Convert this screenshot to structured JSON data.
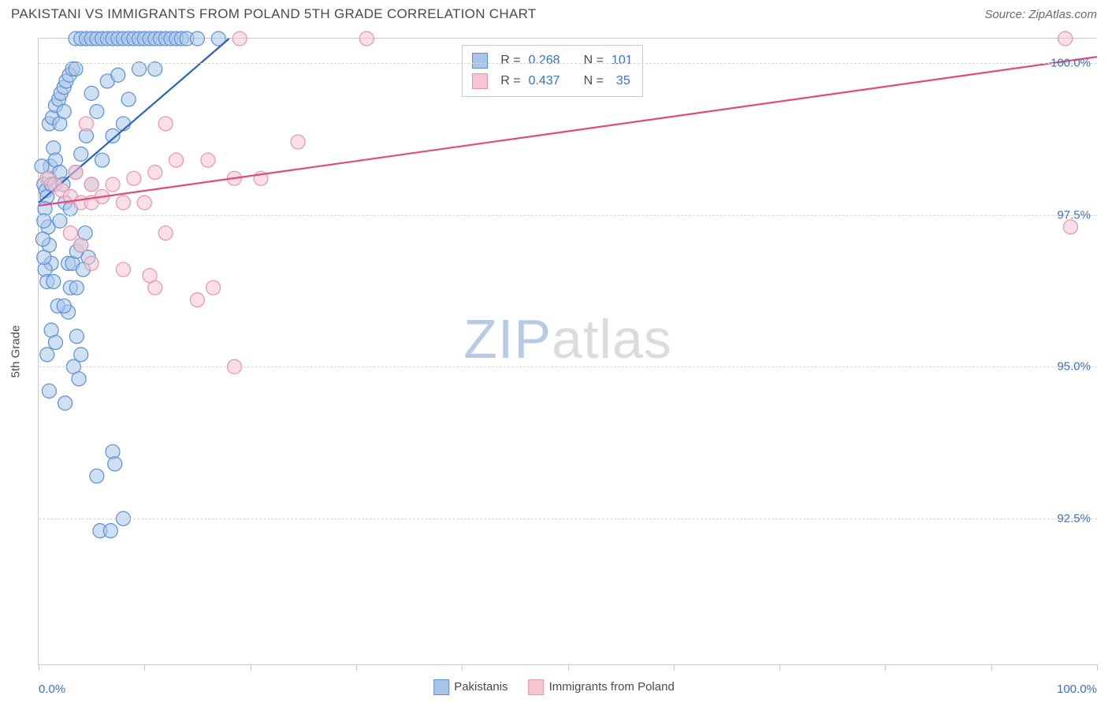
{
  "title": "PAKISTANI VS IMMIGRANTS FROM POLAND 5TH GRADE CORRELATION CHART",
  "source": "Source: ZipAtlas.com",
  "y_axis_title": "5th Grade",
  "watermark": {
    "part1": "ZIP",
    "part2": "atlas"
  },
  "colors": {
    "series_a_fill": "#a9c6ea",
    "series_a_stroke": "#5a8fd6",
    "series_a_line": "#2a63c0",
    "series_b_fill": "#f5c6d2",
    "series_b_stroke": "#e794aa",
    "series_b_line": "#e14a7a",
    "grid": "#d6d6d6",
    "axis": "#c9c9c9",
    "tick_label": "#3970c4",
    "text": "#4a4a4a",
    "background": "#ffffff"
  },
  "chart": {
    "type": "scatter",
    "xlim": [
      0,
      100
    ],
    "ylim": [
      90.1,
      100.4
    ],
    "y_ticks": [
      92.5,
      95.0,
      97.5,
      100.0
    ],
    "y_tick_labels": [
      "92.5%",
      "95.0%",
      "97.5%",
      "100.0%"
    ],
    "x_tick_positions": [
      0,
      10,
      20,
      30,
      40,
      50,
      60,
      70,
      80,
      90,
      100
    ],
    "x_bottom_labels": [
      {
        "x": 0,
        "label": "0.0%"
      },
      {
        "x": 100,
        "label": "100.0%"
      }
    ],
    "marker_radius": 9,
    "marker_opacity": 0.55,
    "line_width": 2.2,
    "series_a": {
      "name": "Pakistanis",
      "R": "0.268",
      "N": "101",
      "trend": {
        "x1": 0,
        "y1": 97.7,
        "x2": 18,
        "y2": 100.4
      },
      "points": [
        [
          0.5,
          98.0
        ],
        [
          0.7,
          97.9
        ],
        [
          0.8,
          97.8
        ],
        [
          1.0,
          98.1
        ],
        [
          1.1,
          98.3
        ],
        [
          1.2,
          98.0
        ],
        [
          0.9,
          97.3
        ],
        [
          1.0,
          97.0
        ],
        [
          1.2,
          96.7
        ],
        [
          0.6,
          96.6
        ],
        [
          0.8,
          96.4
        ],
        [
          1.4,
          96.4
        ],
        [
          1.0,
          99.0
        ],
        [
          1.3,
          99.1
        ],
        [
          1.6,
          99.3
        ],
        [
          1.9,
          99.4
        ],
        [
          2.1,
          99.5
        ],
        [
          2.4,
          99.6
        ],
        [
          2.6,
          99.7
        ],
        [
          2.9,
          99.8
        ],
        [
          3.2,
          99.9
        ],
        [
          1.4,
          98.6
        ],
        [
          1.6,
          98.4
        ],
        [
          2.0,
          98.2
        ],
        [
          2.3,
          98.0
        ],
        [
          0.6,
          97.6
        ],
        [
          0.5,
          97.4
        ],
        [
          0.4,
          97.1
        ],
        [
          0.5,
          96.8
        ],
        [
          2.5,
          97.7
        ],
        [
          3.0,
          97.6
        ],
        [
          3.5,
          98.2
        ],
        [
          4.0,
          98.5
        ],
        [
          4.5,
          98.8
        ],
        [
          5.0,
          99.5
        ],
        [
          5.5,
          99.2
        ],
        [
          2.8,
          96.7
        ],
        [
          3.2,
          96.7
        ],
        [
          3.6,
          96.9
        ],
        [
          4.0,
          97.0
        ],
        [
          4.4,
          97.2
        ],
        [
          2.0,
          97.4
        ],
        [
          5.0,
          98.0
        ],
        [
          6.0,
          98.4
        ],
        [
          7.0,
          98.8
        ],
        [
          8.0,
          99.0
        ],
        [
          6.5,
          99.7
        ],
        [
          7.5,
          99.8
        ],
        [
          1.2,
          95.6
        ],
        [
          1.6,
          95.4
        ],
        [
          0.8,
          95.2
        ],
        [
          2.8,
          95.9
        ],
        [
          3.6,
          95.5
        ],
        [
          4.0,
          95.2
        ],
        [
          1.8,
          96.0
        ],
        [
          2.4,
          96.0
        ],
        [
          1.0,
          94.6
        ],
        [
          2.5,
          94.4
        ],
        [
          3.3,
          95.0
        ],
        [
          3.8,
          94.8
        ],
        [
          5.5,
          93.2
        ],
        [
          5.8,
          92.3
        ],
        [
          6.8,
          92.3
        ],
        [
          8.0,
          92.5
        ],
        [
          7.0,
          93.6
        ],
        [
          7.2,
          93.4
        ],
        [
          3.5,
          100.4
        ],
        [
          4.0,
          100.4
        ],
        [
          4.5,
          100.4
        ],
        [
          5.0,
          100.4
        ],
        [
          5.5,
          100.4
        ],
        [
          6.0,
          100.4
        ],
        [
          6.5,
          100.4
        ],
        [
          7.0,
          100.4
        ],
        [
          7.5,
          100.4
        ],
        [
          8.0,
          100.4
        ],
        [
          8.5,
          100.4
        ],
        [
          9.0,
          100.4
        ],
        [
          9.5,
          100.4
        ],
        [
          10.0,
          100.4
        ],
        [
          10.5,
          100.4
        ],
        [
          11.0,
          100.4
        ],
        [
          11.5,
          100.4
        ],
        [
          12.0,
          100.4
        ],
        [
          12.5,
          100.4
        ],
        [
          13.0,
          100.4
        ],
        [
          13.5,
          100.4
        ],
        [
          14.0,
          100.4
        ],
        [
          15.0,
          100.4
        ],
        [
          17.0,
          100.4
        ],
        [
          2.0,
          99.0
        ],
        [
          2.4,
          99.2
        ],
        [
          8.5,
          99.4
        ],
        [
          9.5,
          99.9
        ],
        [
          3.5,
          99.9
        ],
        [
          11.0,
          99.9
        ],
        [
          3.0,
          96.3
        ],
        [
          3.6,
          96.3
        ],
        [
          4.2,
          96.6
        ],
        [
          4.7,
          96.8
        ],
        [
          0.3,
          98.3
        ]
      ]
    },
    "series_b": {
      "name": "Immigrants from Poland",
      "R": "0.437",
      "N": "35",
      "trend": {
        "x1": 0,
        "y1": 97.65,
        "x2": 100,
        "y2": 100.1
      },
      "points": [
        [
          0.8,
          98.1
        ],
        [
          1.5,
          98.0
        ],
        [
          2.2,
          97.9
        ],
        [
          3.0,
          97.8
        ],
        [
          4.0,
          97.7
        ],
        [
          5.0,
          97.7
        ],
        [
          3.5,
          98.2
        ],
        [
          5.0,
          98.0
        ],
        [
          6.0,
          97.8
        ],
        [
          8.0,
          97.7
        ],
        [
          10.0,
          97.7
        ],
        [
          12.0,
          97.2
        ],
        [
          7.0,
          98.0
        ],
        [
          9.0,
          98.1
        ],
        [
          11.0,
          98.2
        ],
        [
          13.0,
          98.4
        ],
        [
          16.0,
          98.4
        ],
        [
          18.5,
          98.1
        ],
        [
          21.0,
          98.1
        ],
        [
          24.5,
          98.7
        ],
        [
          12.0,
          99.0
        ],
        [
          4.5,
          99.0
        ],
        [
          3.0,
          97.2
        ],
        [
          4.0,
          97.0
        ],
        [
          5.0,
          96.7
        ],
        [
          8.0,
          96.6
        ],
        [
          11.0,
          96.3
        ],
        [
          10.5,
          96.5
        ],
        [
          31.0,
          100.4
        ],
        [
          19.0,
          100.4
        ],
        [
          15.0,
          96.1
        ],
        [
          16.5,
          96.3
        ],
        [
          18.5,
          95.0
        ],
        [
          97.0,
          100.4
        ],
        [
          97.5,
          97.3
        ]
      ]
    }
  },
  "legend_bottom": {
    "a": "Pakistanis",
    "b": "Immigrants from Poland"
  },
  "legend_box": {
    "r_label": "R =",
    "n_label": "N ="
  }
}
